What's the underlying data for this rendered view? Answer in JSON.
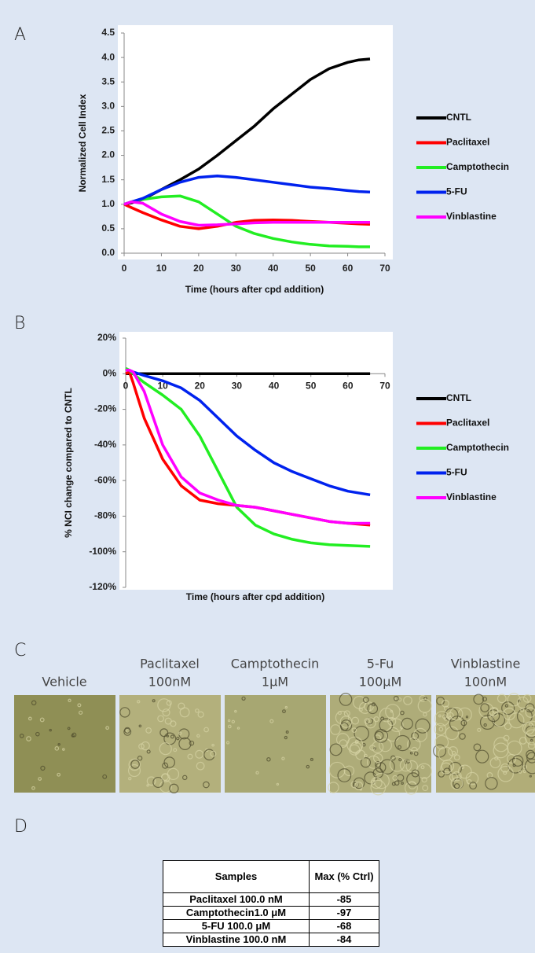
{
  "panel_labels": [
    "A",
    "B",
    "C",
    "D"
  ],
  "chart_data": [
    {
      "type": "line",
      "xlabel": "Time (hours after cpd addition)",
      "ylabel": "Normalized Cell Index",
      "x": [
        0,
        2,
        5,
        10,
        15,
        20,
        25,
        30,
        35,
        40,
        45,
        50,
        55,
        60,
        63,
        66
      ],
      "series": [
        {
          "name": "CNTL",
          "color": "#000000",
          "values": [
            1.0,
            1.03,
            1.1,
            1.3,
            1.5,
            1.72,
            2.0,
            2.3,
            2.6,
            2.95,
            3.25,
            3.55,
            3.77,
            3.9,
            3.95,
            3.97
          ]
        },
        {
          "name": "Paclitaxel",
          "color": "#ff0000",
          "values": [
            1.0,
            0.93,
            0.83,
            0.68,
            0.55,
            0.5,
            0.55,
            0.63,
            0.67,
            0.68,
            0.67,
            0.65,
            0.63,
            0.61,
            0.6,
            0.59
          ]
        },
        {
          "name": "Camptothecin",
          "color": "#22ee22",
          "values": [
            1.0,
            1.05,
            1.1,
            1.15,
            1.17,
            1.05,
            0.8,
            0.55,
            0.4,
            0.3,
            0.23,
            0.18,
            0.15,
            0.14,
            0.13,
            0.13
          ]
        },
        {
          "name": "5-FU",
          "color": "#0022ee",
          "values": [
            1.0,
            1.05,
            1.12,
            1.3,
            1.45,
            1.55,
            1.58,
            1.55,
            1.5,
            1.45,
            1.4,
            1.35,
            1.32,
            1.28,
            1.26,
            1.25
          ]
        },
        {
          "name": "Vinblastine",
          "color": "#ff00ff",
          "values": [
            1.0,
            1.05,
            1.02,
            0.8,
            0.65,
            0.57,
            0.58,
            0.6,
            0.62,
            0.63,
            0.63,
            0.63,
            0.63,
            0.63,
            0.63,
            0.63
          ]
        }
      ],
      "xlim": [
        0,
        70
      ],
      "xticks": [
        0,
        10,
        20,
        30,
        40,
        50,
        60,
        70
      ],
      "ylim": [
        0,
        4.5
      ],
      "yticks": [
        {
          "value": 0,
          "label": "0.0"
        },
        0.5,
        {
          "value": 1,
          "label": "1.0"
        },
        1.5,
        {
          "value": 2,
          "label": "2.0"
        },
        2.5,
        {
          "value": 3,
          "label": "3.0"
        },
        3.5,
        {
          "value": 4,
          "label": "4.0"
        },
        4.5
      ],
      "grid": false,
      "legend": "right"
    },
    {
      "type": "line",
      "xlabel": "Time (hours after cpd addition)",
      "ylabel": "% NCI change compared to CNTL",
      "x": [
        0,
        1,
        2,
        5,
        10,
        15,
        20,
        25,
        30,
        35,
        40,
        45,
        50,
        55,
        60,
        66
      ],
      "series": [
        {
          "name": "CNTL",
          "color": "#000000",
          "values": [
            0,
            0,
            0,
            0,
            0,
            0,
            0,
            0,
            0,
            0,
            0,
            0,
            0,
            0,
            0,
            0
          ]
        },
        {
          "name": "Paclitaxel",
          "color": "#ff0000",
          "values": [
            0,
            1,
            -5,
            -25,
            -48,
            -63,
            -71,
            -73,
            -74,
            -75,
            -77,
            -79,
            -81,
            -83,
            -84,
            -85
          ]
        },
        {
          "name": "Camptothecin",
          "color": "#22ee22",
          "values": [
            3,
            2,
            0,
            -5,
            -12,
            -20,
            -35,
            -55,
            -75,
            -85,
            -90,
            -93,
            -95,
            -96,
            -96.5,
            -97
          ]
        },
        {
          "name": "5-FU",
          "color": "#0022ee",
          "values": [
            2,
            2,
            1,
            -1,
            -4,
            -8,
            -15,
            -25,
            -35,
            -43,
            -50,
            -55,
            -59,
            -63,
            -66,
            -68
          ]
        },
        {
          "name": "Vinblastine",
          "color": "#ff00ff",
          "values": [
            2,
            2,
            1,
            -10,
            -40,
            -58,
            -67,
            -71,
            -74,
            -75,
            -77,
            -79,
            -81,
            -83,
            -84,
            -84
          ]
        }
      ],
      "xlim": [
        0,
        70
      ],
      "xticks": [
        0,
        10,
        20,
        30,
        40,
        50,
        60,
        70
      ],
      "ylim": [
        -120,
        20
      ],
      "yticks": [
        {
          "value": -120,
          "label": "-120%"
        },
        {
          "value": -100,
          "label": "-100%"
        },
        {
          "value": -80,
          "label": "-80%"
        },
        {
          "value": -60,
          "label": "-60%"
        },
        {
          "value": -40,
          "label": "-40%"
        },
        {
          "value": -20,
          "label": "-20%"
        },
        {
          "value": 0,
          "label": "0%"
        },
        {
          "value": 20,
          "label": "20%"
        }
      ],
      "grid": false,
      "legend": "right"
    }
  ],
  "images": {
    "column_labels": [
      [
        "Vehicle"
      ],
      [
        "Paclitaxel",
        "100nM"
      ],
      [
        "Camptothecin",
        "1μM"
      ],
      [
        "5-Fu",
        "100μM"
      ],
      [
        "Vinblastine",
        "100nM"
      ]
    ]
  },
  "table": {
    "header": [
      "Samples",
      "Max (% Ctrl)"
    ],
    "rows": [
      [
        "Paclitaxel 100.0 nM",
        -85
      ],
      [
        "Camptothecin1.0 μM",
        -97
      ],
      [
        "5-FU 100.0 μM",
        -68
      ],
      [
        "Vinblastine 100.0 nM",
        -84
      ]
    ]
  }
}
